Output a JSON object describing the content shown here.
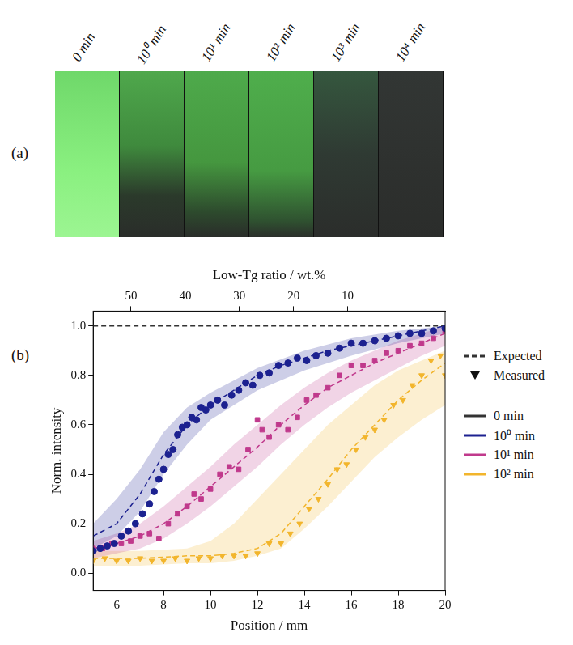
{
  "panel_a": {
    "letter": "(a)",
    "image_labels": [
      "0 min",
      "10⁰ min",
      "10¹ min",
      "10² min",
      "10³ min",
      "10⁴ min"
    ]
  },
  "chart_data": {
    "type": "scatter",
    "panel_letter": "(b)",
    "x_label": "Position / mm",
    "x2_label": "Low-Tg ratio / wt.%",
    "y_label": "Norm. intensity",
    "xlim": [
      5,
      20
    ],
    "xticks": [
      6,
      8,
      10,
      12,
      14,
      16,
      18,
      20
    ],
    "x2lim": [
      57,
      -8
    ],
    "x2ticks": [
      50,
      40,
      30,
      20,
      10
    ],
    "ylim": [
      -0.07,
      1.06
    ],
    "yticks": [
      {
        "value": 0,
        "label": "0.0"
      },
      {
        "value": 0.2,
        "label": "0.2"
      },
      {
        "value": 0.4,
        "label": "0.4"
      },
      {
        "value": 0.6,
        "label": "0.6"
      },
      {
        "value": 0.8,
        "label": "0.8"
      },
      {
        "value": 1.0,
        "label": "1.0"
      }
    ],
    "grid": false,
    "legend": "right",
    "legend_entries": [
      {
        "name": "Expected",
        "line_style": "dashed"
      },
      {
        "name": "Measured",
        "marker": "triangle_down"
      }
    ],
    "series": [
      {
        "name": "0 min",
        "color": "#333333",
        "line_style": "solid",
        "expected": {
          "x": [
            5,
            20
          ],
          "values": [
            1.0,
            1.0
          ]
        }
      },
      {
        "name": "10⁰ min",
        "color": "#1c2190",
        "marker": "circle",
        "line_style": "solid",
        "expected": {
          "x": [
            5,
            6,
            7,
            8,
            9,
            10,
            11,
            12,
            13,
            14,
            15,
            16,
            17,
            18,
            19,
            20
          ],
          "values": [
            0.15,
            0.2,
            0.32,
            0.48,
            0.6,
            0.68,
            0.74,
            0.8,
            0.84,
            0.87,
            0.9,
            0.92,
            0.94,
            0.96,
            0.98,
            1.0
          ]
        },
        "band": {
          "x": [
            5,
            6,
            7,
            8,
            9,
            10,
            12,
            14,
            16,
            18,
            20
          ],
          "lower": [
            0.1,
            0.15,
            0.25,
            0.4,
            0.52,
            0.62,
            0.74,
            0.82,
            0.88,
            0.93,
            0.97
          ],
          "upper": [
            0.2,
            0.3,
            0.42,
            0.57,
            0.67,
            0.73,
            0.83,
            0.9,
            0.95,
            0.98,
            1.0
          ]
        },
        "measured": {
          "x": [
            5.0,
            5.3,
            5.6,
            5.9,
            6.2,
            6.5,
            6.8,
            7.1,
            7.4,
            7.6,
            7.8,
            8.0,
            8.2,
            8.4,
            8.6,
            8.8,
            9.0,
            9.2,
            9.4,
            9.6,
            9.8,
            10.0,
            10.3,
            10.6,
            10.9,
            11.2,
            11.5,
            11.8,
            12.1,
            12.5,
            12.9,
            13.3,
            13.7,
            14.1,
            14.5,
            15.0,
            15.5,
            16.0,
            16.5,
            17.0,
            17.5,
            18.0,
            18.5,
            19.0,
            19.5,
            20.0
          ],
          "values": [
            0.09,
            0.1,
            0.11,
            0.12,
            0.15,
            0.17,
            0.2,
            0.24,
            0.28,
            0.33,
            0.38,
            0.42,
            0.48,
            0.5,
            0.56,
            0.59,
            0.6,
            0.63,
            0.62,
            0.67,
            0.66,
            0.68,
            0.7,
            0.68,
            0.72,
            0.74,
            0.77,
            0.76,
            0.8,
            0.81,
            0.84,
            0.85,
            0.87,
            0.86,
            0.88,
            0.89,
            0.91,
            0.93,
            0.93,
            0.94,
            0.95,
            0.96,
            0.97,
            0.97,
            0.98,
            0.99
          ]
        }
      },
      {
        "name": "10¹ min",
        "color": "#c0398c",
        "marker": "square",
        "line_style": "solid",
        "expected": {
          "x": [
            5,
            6,
            7,
            8,
            9,
            10,
            11,
            12,
            13,
            14,
            15,
            16,
            17,
            18,
            19,
            20
          ],
          "values": [
            0.1,
            0.12,
            0.15,
            0.2,
            0.27,
            0.35,
            0.43,
            0.51,
            0.6,
            0.68,
            0.75,
            0.8,
            0.85,
            0.89,
            0.93,
            0.97
          ]
        },
        "band": {
          "x": [
            5,
            6,
            7,
            8,
            9,
            10,
            11,
            12,
            13,
            14,
            15,
            16,
            17,
            18,
            19,
            20
          ],
          "lower": [
            0.06,
            0.08,
            0.1,
            0.14,
            0.2,
            0.27,
            0.35,
            0.43,
            0.52,
            0.6,
            0.67,
            0.73,
            0.78,
            0.83,
            0.88,
            0.92
          ],
          "upper": [
            0.13,
            0.16,
            0.2,
            0.27,
            0.35,
            0.43,
            0.52,
            0.6,
            0.68,
            0.75,
            0.81,
            0.86,
            0.9,
            0.94,
            0.97,
            1.0
          ]
        },
        "measured": {
          "x": [
            5.0,
            5.4,
            5.8,
            6.2,
            6.6,
            7.0,
            7.4,
            7.8,
            8.2,
            8.6,
            9.0,
            9.3,
            9.6,
            10.0,
            10.4,
            10.8,
            11.2,
            11.6,
            12.0,
            12.2,
            12.5,
            12.9,
            13.3,
            13.7,
            14.1,
            14.5,
            15.0,
            15.5,
            16.0,
            16.5,
            17.0,
            17.5,
            18.0,
            18.5,
            19.0,
            19.5,
            20.0
          ],
          "values": [
            0.1,
            0.1,
            0.12,
            0.12,
            0.13,
            0.15,
            0.16,
            0.14,
            0.2,
            0.24,
            0.27,
            0.32,
            0.3,
            0.34,
            0.4,
            0.43,
            0.42,
            0.5,
            0.62,
            0.58,
            0.55,
            0.6,
            0.58,
            0.63,
            0.7,
            0.72,
            0.75,
            0.8,
            0.84,
            0.84,
            0.86,
            0.89,
            0.9,
            0.92,
            0.93,
            0.95,
            0.98
          ]
        }
      },
      {
        "name": "10² min",
        "color": "#f2b52c",
        "marker": "triangle_down",
        "line_style": "solid",
        "expected": {
          "x": [
            5,
            7,
            9,
            10,
            11,
            12,
            13,
            14,
            15,
            16,
            17,
            18,
            19,
            20
          ],
          "values": [
            0.06,
            0.06,
            0.07,
            0.07,
            0.08,
            0.1,
            0.16,
            0.27,
            0.38,
            0.5,
            0.6,
            0.7,
            0.78,
            0.85
          ]
        },
        "band": {
          "x": [
            5,
            7,
            9,
            10,
            11,
            12,
            13,
            14,
            15,
            16,
            17,
            18,
            19,
            20
          ],
          "lower": [
            0.03,
            0.03,
            0.04,
            0.04,
            0.05,
            0.07,
            0.1,
            0.18,
            0.27,
            0.37,
            0.47,
            0.55,
            0.62,
            0.68
          ],
          "upper": [
            0.09,
            0.09,
            0.1,
            0.13,
            0.2,
            0.3,
            0.4,
            0.5,
            0.6,
            0.68,
            0.76,
            0.82,
            0.86,
            0.9
          ]
        },
        "measured": {
          "x": [
            5.0,
            5.5,
            6.0,
            6.5,
            7.0,
            7.5,
            8.0,
            8.5,
            9.0,
            9.5,
            10.0,
            10.5,
            11.0,
            11.5,
            12.0,
            12.5,
            13.0,
            13.4,
            13.8,
            14.2,
            14.6,
            15.0,
            15.4,
            15.8,
            16.2,
            16.6,
            17.0,
            17.4,
            17.8,
            18.2,
            18.6,
            19.0,
            19.4,
            19.8,
            20.0
          ],
          "values": [
            0.05,
            0.06,
            0.05,
            0.05,
            0.06,
            0.05,
            0.05,
            0.06,
            0.05,
            0.06,
            0.06,
            0.07,
            0.07,
            0.07,
            0.08,
            0.12,
            0.12,
            0.16,
            0.2,
            0.26,
            0.3,
            0.36,
            0.42,
            0.44,
            0.5,
            0.55,
            0.58,
            0.62,
            0.68,
            0.7,
            0.76,
            0.8,
            0.86,
            0.88,
            0.8
          ]
        }
      }
    ]
  }
}
